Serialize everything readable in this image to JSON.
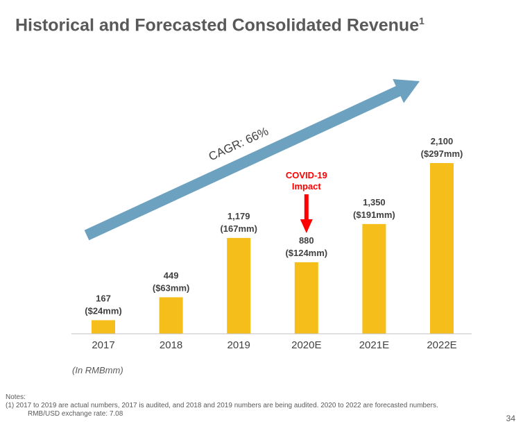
{
  "slide": {
    "title": "Historical and Forecasted Consolidated Revenue",
    "title_footnote": "1",
    "unit_label": "(In RMBmm)",
    "notes_label": "Notes:",
    "note_1_line_1": "(1)   2017 to 2019 are actual numbers, 2017 is audited, and 2018 and 2019 numbers are being audited. 2020 to 2022 are forecasted numbers.",
    "note_1_line_2": "RMB/USD exchange rate: 7.08",
    "page_number": "34"
  },
  "chart_data": {
    "type": "bar",
    "title": "Historical and Forecasted Consolidated Revenue",
    "categories": [
      "2017",
      "2018",
      "2019",
      "2020E",
      "2021E",
      "2022E"
    ],
    "values": [
      167,
      449,
      1179,
      880,
      1350,
      2100
    ],
    "value_labels": [
      "167",
      "449",
      "1,179",
      "880",
      "1,350",
      "2,100"
    ],
    "usd_labels": [
      "($24mm)",
      "($63mm)",
      "(167mm)",
      "($124mm)",
      "($191mm)",
      "($297mm)"
    ],
    "ylim": [
      0,
      2100
    ],
    "grid": false,
    "bar_color": "#F6BE1A",
    "cagr_label": "CAGR: 66%",
    "arrow_color": "#6CA2C0",
    "annotation": {
      "category": "2020E",
      "line_1": "COVID-19",
      "line_2": "Impact",
      "color": "#FF0000"
    }
  }
}
